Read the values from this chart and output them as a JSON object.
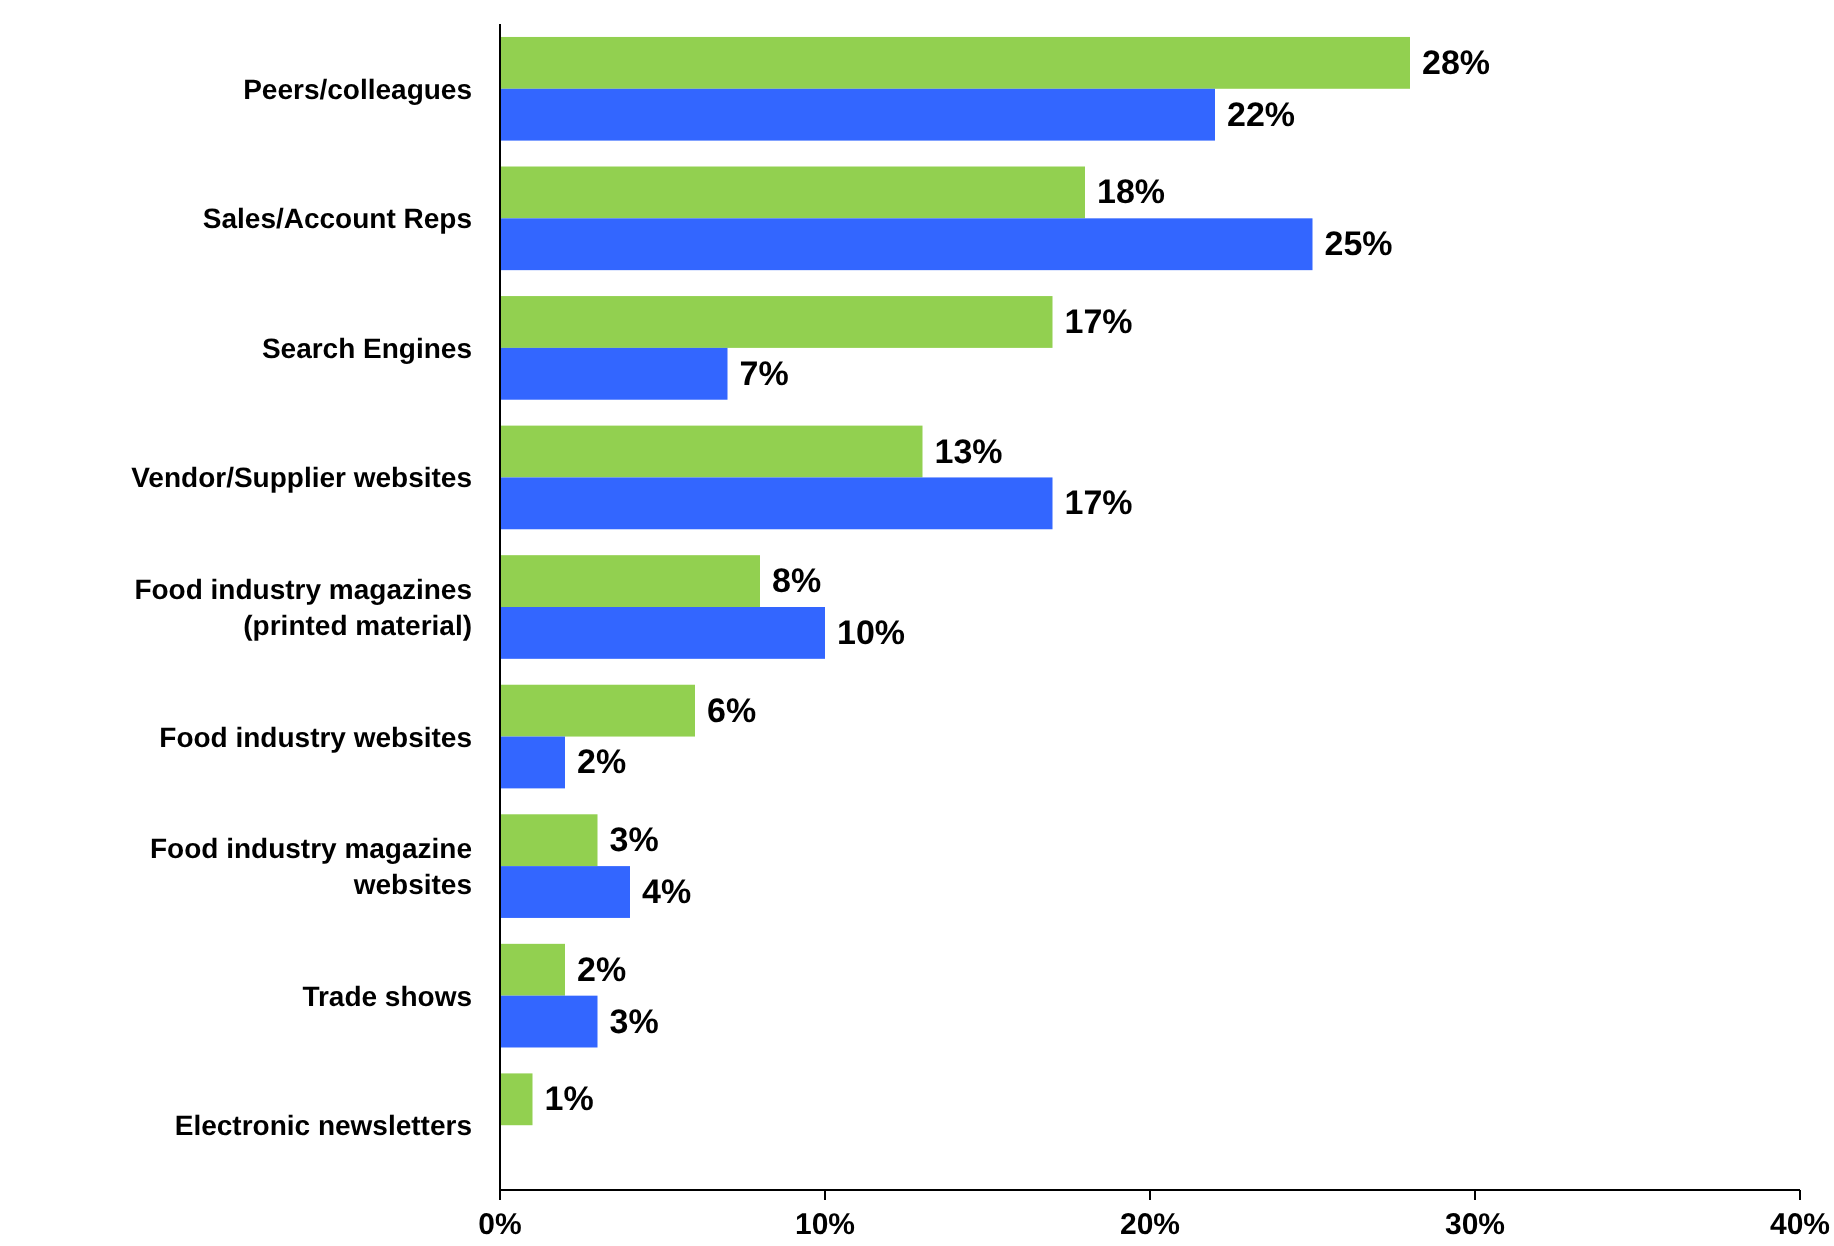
{
  "chart_data": {
    "type": "bar",
    "orientation": "horizontal",
    "categories": [
      "Peers/colleagues",
      "Sales/Account Reps",
      "Search Engines",
      "Vendor/Supplier websites",
      "Food industry magazines (printed material)",
      "Food industry websites",
      "Food industry magazine websites",
      "Trade shows",
      "Electronic newsletters"
    ],
    "series": [
      {
        "color": "#92d050",
        "values": [
          28,
          18,
          17,
          13,
          8,
          6,
          3,
          2,
          1
        ],
        "value_labels": [
          "28%",
          "18%",
          "17%",
          "13%",
          "8%",
          "6%",
          "3%",
          "2%",
          "1%"
        ]
      },
      {
        "color": "#3366ff",
        "values": [
          22,
          25,
          7,
          17,
          10,
          2,
          4,
          3,
          null
        ],
        "value_labels": [
          "22%",
          "25%",
          "7%",
          "17%",
          "10%",
          "2%",
          "4%",
          "3%",
          null
        ]
      }
    ],
    "xlim": [
      0,
      40
    ],
    "xticks": [
      {
        "value": 0,
        "label": "0%"
      },
      {
        "value": 10,
        "label": "10%"
      },
      {
        "value": 20,
        "label": "20%"
      },
      {
        "value": 30,
        "label": "30%"
      },
      {
        "value": 40,
        "label": "40%"
      }
    ],
    "grid": false
  }
}
